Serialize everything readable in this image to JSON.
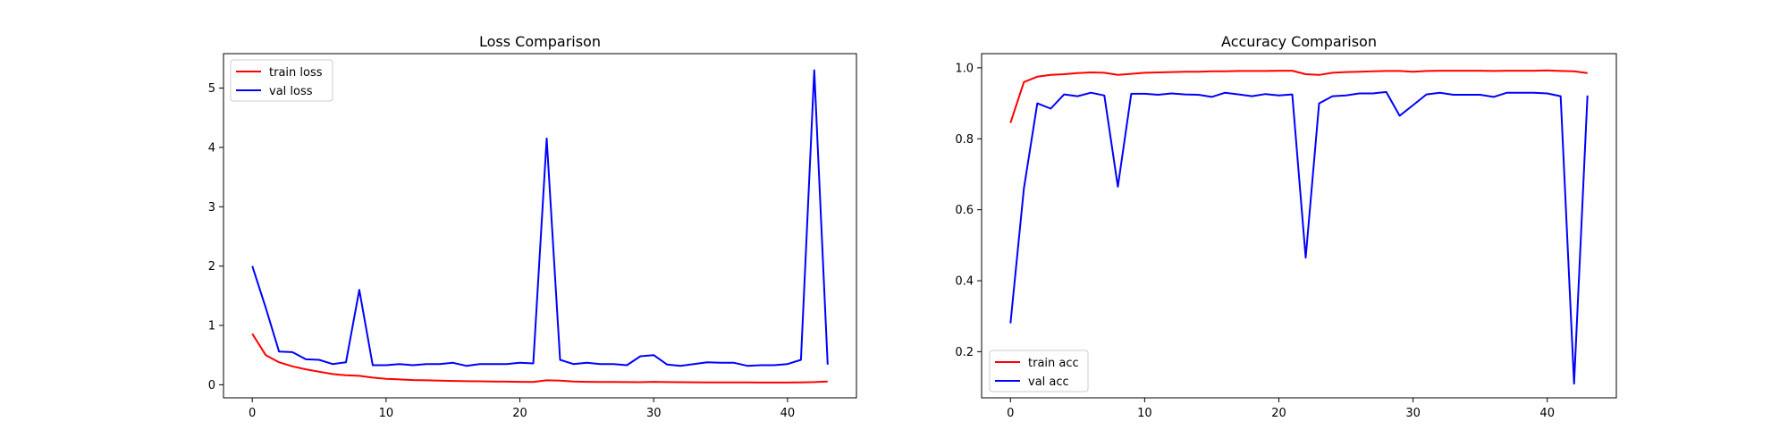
{
  "chart_data": [
    {
      "type": "line",
      "title": "Loss Comparison",
      "xlabel": "",
      "ylabel": "",
      "xlim": [
        -2.15,
        45.15
      ],
      "ylim": [
        -0.22,
        5.58
      ],
      "xticks": [
        0,
        10,
        20,
        30,
        40
      ],
      "yticks": [
        0,
        1,
        2,
        3,
        4,
        5
      ],
      "xtick_labels": [
        "0",
        "10",
        "20",
        "30",
        "40"
      ],
      "ytick_labels": [
        "0",
        "1",
        "2",
        "3",
        "4",
        "5"
      ],
      "grid": false,
      "legend_position": "upper left",
      "x": [
        0,
        1,
        2,
        3,
        4,
        5,
        6,
        7,
        8,
        9,
        10,
        11,
        12,
        13,
        14,
        15,
        16,
        17,
        18,
        19,
        20,
        21,
        22,
        23,
        24,
        25,
        26,
        27,
        28,
        29,
        30,
        31,
        32,
        33,
        34,
        35,
        36,
        37,
        38,
        39,
        40,
        41,
        42,
        43
      ],
      "series": [
        {
          "name": "train loss",
          "color": "#ff0000",
          "values": [
            0.86,
            0.5,
            0.38,
            0.31,
            0.26,
            0.22,
            0.18,
            0.16,
            0.15,
            0.12,
            0.1,
            0.09,
            0.08,
            0.075,
            0.07,
            0.065,
            0.06,
            0.058,
            0.055,
            0.052,
            0.05,
            0.048,
            0.075,
            0.07,
            0.055,
            0.05,
            0.048,
            0.046,
            0.045,
            0.044,
            0.05,
            0.045,
            0.043,
            0.042,
            0.041,
            0.04,
            0.04,
            0.039,
            0.038,
            0.038,
            0.037,
            0.04,
            0.045,
            0.055
          ]
        },
        {
          "name": "val loss",
          "color": "#0000ff",
          "values": [
            2.0,
            1.3,
            0.56,
            0.55,
            0.43,
            0.42,
            0.35,
            0.38,
            1.6,
            0.33,
            0.33,
            0.35,
            0.33,
            0.35,
            0.35,
            0.37,
            0.32,
            0.35,
            0.35,
            0.35,
            0.37,
            0.36,
            4.15,
            0.42,
            0.35,
            0.37,
            0.35,
            0.35,
            0.33,
            0.48,
            0.5,
            0.34,
            0.32,
            0.35,
            0.38,
            0.37,
            0.37,
            0.32,
            0.33,
            0.33,
            0.35,
            0.42,
            5.3,
            0.34
          ]
        }
      ]
    },
    {
      "type": "line",
      "title": "Accuracy Comparison",
      "xlabel": "",
      "ylabel": "",
      "xlim": [
        -2.15,
        45.15
      ],
      "ylim": [
        0.07,
        1.04
      ],
      "xticks": [
        0,
        10,
        20,
        30,
        40
      ],
      "yticks": [
        0.2,
        0.4,
        0.6,
        0.8,
        1.0
      ],
      "xtick_labels": [
        "0",
        "10",
        "20",
        "30",
        "40"
      ],
      "ytick_labels": [
        "0.2",
        "0.4",
        "0.6",
        "0.8",
        "1.0"
      ],
      "grid": false,
      "legend_position": "lower left",
      "x": [
        0,
        1,
        2,
        3,
        4,
        5,
        6,
        7,
        8,
        9,
        10,
        11,
        12,
        13,
        14,
        15,
        16,
        17,
        18,
        19,
        20,
        21,
        22,
        23,
        24,
        25,
        26,
        27,
        28,
        29,
        30,
        31,
        32,
        33,
        34,
        35,
        36,
        37,
        38,
        39,
        40,
        41,
        42,
        43
      ],
      "series": [
        {
          "name": "train acc",
          "color": "#ff0000",
          "values": [
            0.845,
            0.96,
            0.975,
            0.98,
            0.982,
            0.985,
            0.987,
            0.986,
            0.98,
            0.983,
            0.986,
            0.987,
            0.988,
            0.989,
            0.989,
            0.99,
            0.99,
            0.991,
            0.991,
            0.991,
            0.992,
            0.992,
            0.982,
            0.98,
            0.986,
            0.988,
            0.989,
            0.99,
            0.991,
            0.991,
            0.989,
            0.991,
            0.992,
            0.992,
            0.992,
            0.992,
            0.991,
            0.992,
            0.992,
            0.992,
            0.993,
            0.991,
            0.99,
            0.985
          ]
        },
        {
          "name": "val acc",
          "color": "#0000ff",
          "values": [
            0.28,
            0.66,
            0.9,
            0.885,
            0.925,
            0.92,
            0.93,
            0.922,
            0.665,
            0.927,
            0.927,
            0.924,
            0.928,
            0.925,
            0.924,
            0.918,
            0.93,
            0.925,
            0.92,
            0.926,
            0.922,
            0.925,
            0.465,
            0.9,
            0.92,
            0.922,
            0.928,
            0.928,
            0.932,
            0.865,
            0.895,
            0.925,
            0.93,
            0.924,
            0.924,
            0.924,
            0.918,
            0.93,
            0.93,
            0.93,
            0.928,
            0.92,
            0.11,
            0.922
          ]
        }
      ]
    }
  ]
}
